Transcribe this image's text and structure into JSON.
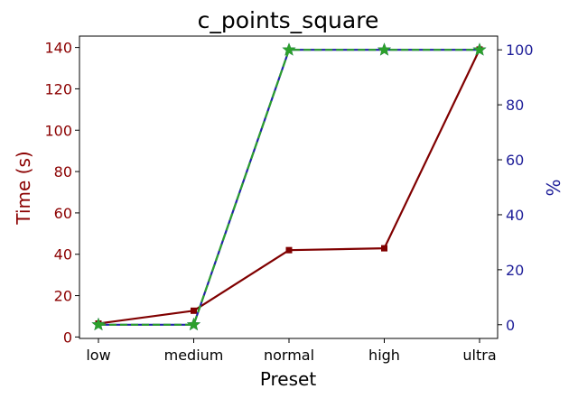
{
  "chart_data": {
    "type": "line",
    "title": "c_points_square",
    "xlabel": "Preset",
    "ylabel_left": "Time (s)",
    "ylabel_right": "%",
    "categories": [
      "low",
      "medium",
      "normal",
      "high",
      "ultra"
    ],
    "ylim_left": [
      -0.7,
      145.5
    ],
    "ylim_right": [
      -5,
      105
    ],
    "yticks_left": [
      0,
      20,
      40,
      60,
      80,
      100,
      120,
      140
    ],
    "yticks_right": [
      0,
      20,
      40,
      60,
      80,
      100
    ],
    "series": [
      {
        "axis": "left",
        "values": [
          6.5,
          12.7,
          42.0,
          42.9,
          139.0
        ],
        "color": "#800000",
        "marker": "square",
        "style": "solid"
      },
      {
        "axis": "right",
        "values": [
          0,
          0,
          100,
          100,
          100
        ],
        "color": "#2222aa",
        "marker": "star",
        "style": "solid"
      },
      {
        "axis": "right",
        "values": [
          0,
          0,
          100,
          100,
          100
        ],
        "color": "#2ca02c",
        "marker": "star",
        "style": "dashed"
      }
    ],
    "colors": {
      "left_axis": "#8b0000",
      "right_axis": "#1f1f99"
    },
    "grid": false,
    "legend": "none"
  }
}
